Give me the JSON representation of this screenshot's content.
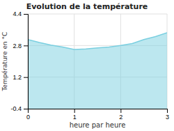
{
  "chart_data": {
    "type": "area",
    "title": "Evolution de la température",
    "xlabel": "heure par heure",
    "ylabel": "Température en °C",
    "x": [
      0,
      0.25,
      0.5,
      0.75,
      1.0,
      1.25,
      1.5,
      1.75,
      2.0,
      2.25,
      2.5,
      2.75,
      3.0
    ],
    "values": [
      3.1,
      2.95,
      2.82,
      2.72,
      2.6,
      2.63,
      2.68,
      2.72,
      2.8,
      2.9,
      3.1,
      3.25,
      3.45
    ],
    "color": "#7acfe0",
    "xlim": [
      0,
      3
    ],
    "ylim": [
      -0.4,
      4.4
    ],
    "xticks": [
      0,
      1,
      2,
      3
    ],
    "yticks": [
      -0.4,
      1.2,
      2.8,
      4.4
    ],
    "grid": true
  }
}
